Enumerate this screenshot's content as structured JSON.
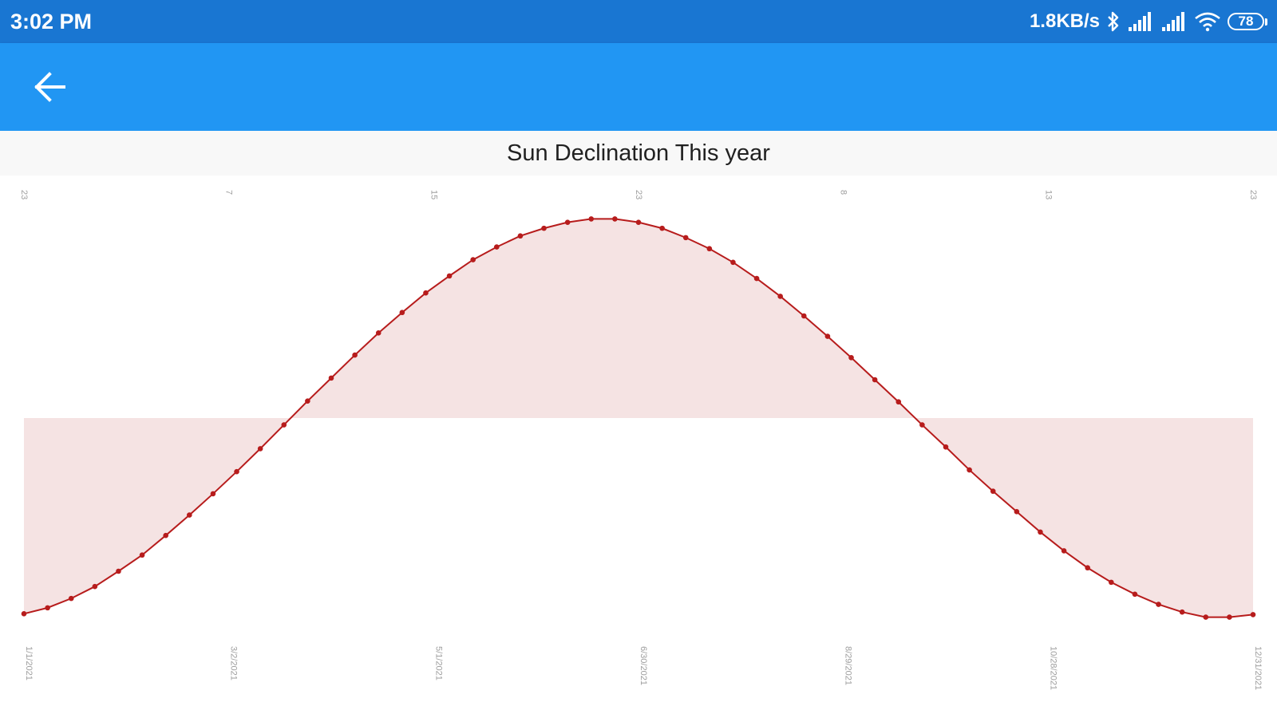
{
  "status_bar": {
    "time": "3:02 PM",
    "network_speed": "1.8KB/s",
    "battery_level": "78",
    "icons": [
      "bluetooth-icon",
      "signal-icon",
      "signal-icon",
      "wifi-icon",
      "battery-icon"
    ]
  },
  "app_bar": {
    "back_icon": "arrow-back-icon"
  },
  "colors": {
    "status_bar": "#1976d2",
    "app_bar": "#2196f3",
    "line": "#b71c1c",
    "fill": "#f5e3e3"
  },
  "chart_data": {
    "type": "area",
    "title": "Sun Declination This year",
    "x_labels": [
      "1/1/2021",
      "3/2/2021",
      "5/1/2021",
      "6/30/2021",
      "8/29/2021",
      "10/28/2021",
      "12/31/2021"
    ],
    "top_labels": [
      "23",
      "7",
      "15",
      "23",
      "8",
      "13",
      "23"
    ],
    "baseline": 0,
    "x": [
      "2021-01-01",
      "2021-01-08",
      "2021-01-15",
      "2021-01-22",
      "2021-01-29",
      "2021-02-05",
      "2021-02-12",
      "2021-02-19",
      "2021-02-26",
      "2021-03-05",
      "2021-03-12",
      "2021-03-19",
      "2021-03-26",
      "2021-04-02",
      "2021-04-09",
      "2021-04-16",
      "2021-04-23",
      "2021-04-30",
      "2021-05-07",
      "2021-05-14",
      "2021-05-21",
      "2021-05-28",
      "2021-06-04",
      "2021-06-11",
      "2021-06-18",
      "2021-06-25",
      "2021-07-02",
      "2021-07-09",
      "2021-07-16",
      "2021-07-23",
      "2021-07-30",
      "2021-08-06",
      "2021-08-13",
      "2021-08-20",
      "2021-08-27",
      "2021-09-03",
      "2021-09-10",
      "2021-09-17",
      "2021-09-24",
      "2021-10-01",
      "2021-10-08",
      "2021-10-15",
      "2021-10-22",
      "2021-10-29",
      "2021-11-05",
      "2021-11-12",
      "2021-11-19",
      "2021-11-26",
      "2021-12-03",
      "2021-12-10",
      "2021-12-17",
      "2021-12-24",
      "2021-12-31"
    ],
    "values": [
      -23.0,
      -22.3,
      -21.2,
      -19.8,
      -18.0,
      -16.1,
      -13.8,
      -11.4,
      -8.9,
      -6.3,
      -3.6,
      -0.8,
      2.0,
      4.7,
      7.4,
      10.0,
      12.4,
      14.7,
      16.7,
      18.6,
      20.1,
      21.4,
      22.3,
      23.0,
      23.4,
      23.4,
      23.0,
      22.3,
      21.2,
      19.9,
      18.3,
      16.4,
      14.3,
      12.0,
      9.6,
      7.1,
      4.5,
      1.9,
      -0.8,
      -3.4,
      -6.1,
      -8.6,
      -11.0,
      -13.4,
      -15.6,
      -17.6,
      -19.3,
      -20.7,
      -21.9,
      -22.8,
      -23.4,
      -23.4,
      -23.1
    ],
    "ylim": [
      -24,
      24
    ],
    "grid": false,
    "legend": "none"
  }
}
